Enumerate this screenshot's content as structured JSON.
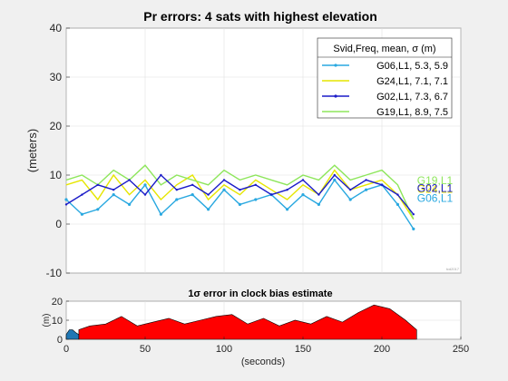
{
  "chart_data": [
    {
      "type": "line",
      "title": "Pr errors: 4 sats with highest elevation",
      "ylabel": "(meters)",
      "xlim": [
        0,
        250
      ],
      "ylim": [
        -10,
        40
      ],
      "yticks": [
        -10,
        0,
        10,
        20,
        30,
        40
      ],
      "grid": true,
      "watermark": "tcd2017",
      "legend": {
        "placement": "top-right",
        "title": "Svid,Freq, mean, σ (m)",
        "entries": [
          "G06,L1,  5.3,  5.9",
          "G24,L1,  7.1,  7.1",
          "G02,L1,  7.3,  6.7",
          "G19,L1,  8.9,  7.5"
        ]
      },
      "series": [
        {
          "name": "G06,L1",
          "end_label": "G06,L1",
          "color": "#29a8e0",
          "marker": "dot",
          "mean": 5.3,
          "sigma": 5.9,
          "x": [
            0,
            10,
            20,
            30,
            40,
            50,
            60,
            70,
            80,
            90,
            100,
            110,
            120,
            130,
            140,
            150,
            160,
            170,
            180,
            190,
            200,
            210,
            220
          ],
          "y": [
            5,
            2,
            3,
            6,
            4,
            8,
            2,
            5,
            6,
            3,
            7,
            4,
            5,
            6,
            3,
            6,
            4,
            9,
            5,
            7,
            8,
            4,
            -1
          ]
        },
        {
          "name": "G24,L1",
          "end_label": "G24,L1",
          "color": "#e6e600",
          "marker": "none",
          "mean": 7.1,
          "sigma": 7.1,
          "x": [
            0,
            10,
            20,
            30,
            40,
            50,
            60,
            70,
            80,
            90,
            100,
            110,
            120,
            130,
            140,
            150,
            160,
            170,
            180,
            190,
            200,
            210,
            220
          ],
          "y": [
            8,
            9,
            5,
            10,
            6,
            9,
            5,
            8,
            10,
            5,
            8,
            6,
            9,
            7,
            5,
            8,
            6,
            11,
            7,
            8,
            9,
            6,
            1
          ]
        },
        {
          "name": "G02,L1",
          "end_label": "G02,L1",
          "color": "#1c1cc8",
          "marker": "point",
          "mean": 7.3,
          "sigma": 6.7,
          "x": [
            0,
            10,
            20,
            30,
            40,
            50,
            60,
            70,
            80,
            90,
            100,
            110,
            120,
            130,
            140,
            150,
            160,
            170,
            180,
            190,
            200,
            210,
            220
          ],
          "y": [
            4,
            6,
            8,
            7,
            9,
            6,
            10,
            7,
            8,
            6,
            9,
            7,
            8,
            6,
            7,
            9,
            6,
            10,
            7,
            9,
            8,
            6,
            2
          ]
        },
        {
          "name": "G19,L1",
          "end_label": "G19,L1",
          "color": "#8ee65c",
          "marker": "none",
          "mean": 8.9,
          "sigma": 7.5,
          "x": [
            0,
            10,
            20,
            30,
            40,
            50,
            60,
            70,
            80,
            90,
            100,
            110,
            120,
            130,
            140,
            150,
            160,
            170,
            180,
            190,
            200,
            210,
            220
          ],
          "y": [
            9,
            10,
            8,
            11,
            9,
            12,
            8,
            10,
            9,
            8,
            11,
            9,
            10,
            9,
            8,
            10,
            9,
            12,
            9,
            10,
            11,
            8,
            1
          ]
        }
      ]
    },
    {
      "type": "area",
      "title": "1σ error in clock bias estimate",
      "ylabel": "(m)",
      "xlabel": "(seconds)",
      "xlim": [
        0,
        250
      ],
      "ylim": [
        0,
        20
      ],
      "xticks": [
        0,
        50,
        100,
        150,
        200,
        250
      ],
      "yticks": [
        0,
        10,
        20
      ],
      "grid": true,
      "series": [
        {
          "color": "#1f77b4",
          "x": [
            0,
            2,
            4,
            6,
            8
          ],
          "y": [
            2.5,
            5,
            5,
            3.5,
            2.5
          ]
        },
        {
          "color": "#ff0000",
          "x": [
            8,
            15,
            25,
            35,
            45,
            55,
            65,
            75,
            85,
            95,
            105,
            115,
            125,
            135,
            145,
            155,
            165,
            175,
            185,
            195,
            205,
            215,
            222
          ],
          "y": [
            5,
            7,
            8,
            12,
            7,
            9,
            11,
            8,
            10,
            12,
            13,
            8,
            11,
            7,
            10,
            8,
            12,
            9,
            14,
            18,
            16,
            10,
            5
          ]
        }
      ]
    }
  ]
}
